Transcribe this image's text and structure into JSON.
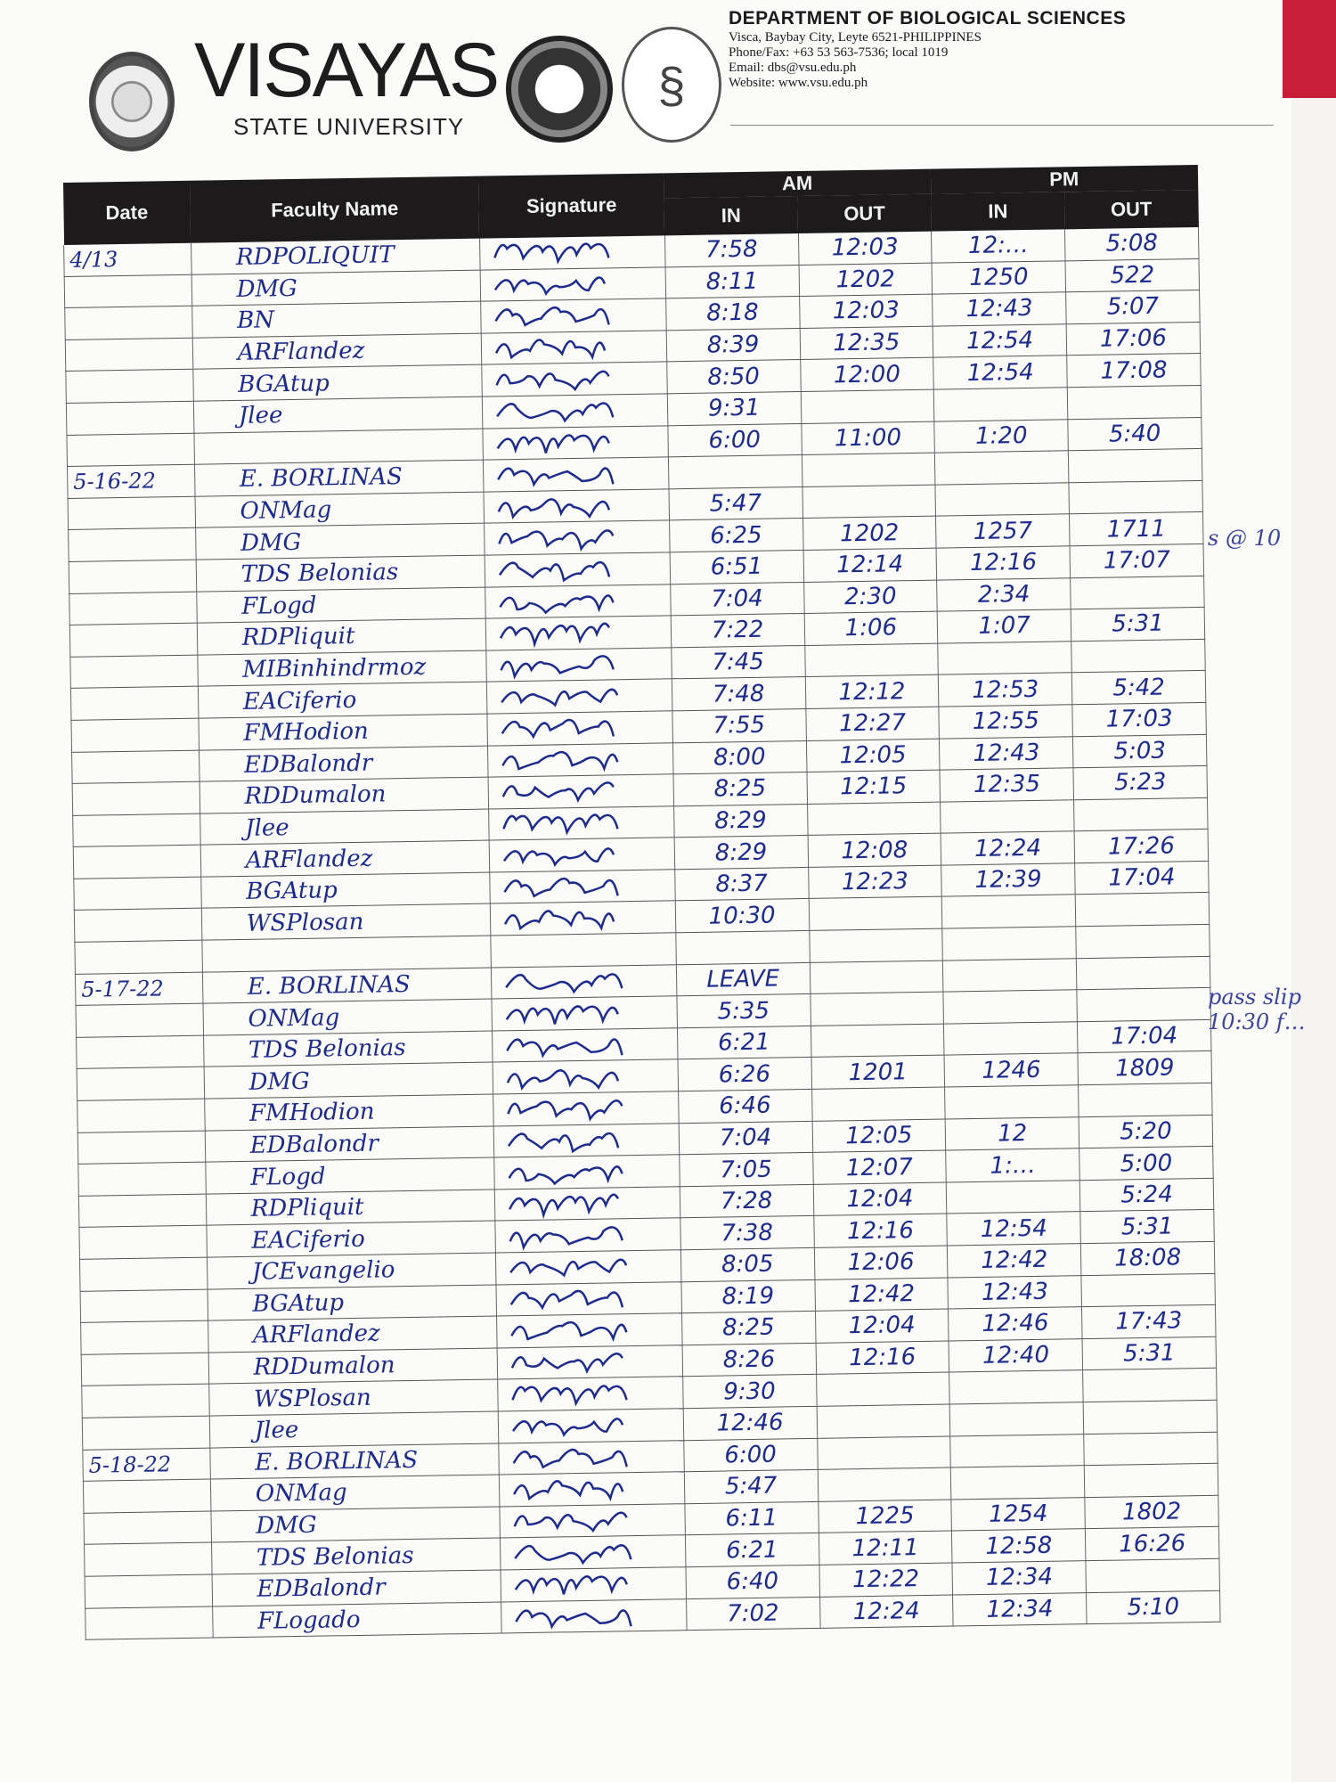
{
  "header": {
    "university": "VISAYAS",
    "university_sub": "STATE UNIVERSITY",
    "department": "DEPARTMENT OF BIOLOGICAL SCIENCES",
    "address": "Visca, Baybay City, Leyte 6521-PHILIPPINES",
    "phone": "Phone/Fax: +63 53  563-7536; local 1019",
    "email": "Email: dbs@vsu.edu.ph",
    "website": "Website: www.vsu.edu.ph"
  },
  "table": {
    "columns": {
      "date": "Date",
      "name": "Faculty Name",
      "signature": "Signature",
      "am": "AM",
      "pm": "PM",
      "in": "IN",
      "out": "OUT"
    },
    "rows": [
      {
        "date": "4/13",
        "name": "RDPOLIQUIT",
        "sig": true,
        "am_in": "7:58",
        "am_out": "12:03",
        "pm_in": "12:…",
        "pm_out": "5:08"
      },
      {
        "date": "",
        "name": "DMG",
        "sig": true,
        "am_in": "8:11",
        "am_out": "1202",
        "pm_in": "1250",
        "pm_out": "522"
      },
      {
        "date": "",
        "name": "BN",
        "sig": true,
        "am_in": "8:18",
        "am_out": "12:03",
        "pm_in": "12:43",
        "pm_out": "5:07"
      },
      {
        "date": "",
        "name": "ARFlandez",
        "sig": true,
        "am_in": "8:39",
        "am_out": "12:35",
        "pm_in": "12:54",
        "pm_out": "17:06"
      },
      {
        "date": "",
        "name": "BGAtup",
        "sig": true,
        "am_in": "8:50",
        "am_out": "12:00",
        "pm_in": "12:54",
        "pm_out": "17:08"
      },
      {
        "date": "",
        "name": "Jlee",
        "sig": true,
        "am_in": "9:31",
        "am_out": "",
        "pm_in": "",
        "pm_out": ""
      },
      {
        "date": "",
        "name": "",
        "sig": true,
        "am_in": "6:00",
        "am_out": "11:00",
        "pm_in": "1:20",
        "pm_out": "5:40"
      },
      {
        "date": "5-16-22",
        "name": "E. BORLINAS",
        "sig": true,
        "am_in": "",
        "am_out": "",
        "pm_in": "",
        "pm_out": ""
      },
      {
        "date": "",
        "name": "ONMag",
        "sig": true,
        "am_in": "5:47",
        "am_out": "",
        "pm_in": "",
        "pm_out": ""
      },
      {
        "date": "",
        "name": "DMG",
        "sig": true,
        "am_in": "6:25",
        "am_out": "1202",
        "pm_in": "1257",
        "pm_out": "1711"
      },
      {
        "date": "",
        "name": "TDS Belonias",
        "sig": true,
        "am_in": "6:51",
        "am_out": "12:14",
        "pm_in": "12:16",
        "pm_out": "17:07"
      },
      {
        "date": "",
        "name": "FLogd",
        "sig": true,
        "am_in": "7:04",
        "am_out": "2:30",
        "pm_in": "2:34",
        "pm_out": ""
      },
      {
        "date": "",
        "name": "RDPliquit",
        "sig": true,
        "am_in": "7:22",
        "am_out": "1:06",
        "pm_in": "1:07",
        "pm_out": "5:31"
      },
      {
        "date": "",
        "name": "MIBinhindrmoz",
        "sig": true,
        "am_in": "7:45",
        "am_out": "",
        "pm_in": "",
        "pm_out": ""
      },
      {
        "date": "",
        "name": "EACiferio",
        "sig": true,
        "am_in": "7:48",
        "am_out": "12:12",
        "pm_in": "12:53",
        "pm_out": "5:42"
      },
      {
        "date": "",
        "name": "FMHodion",
        "sig": true,
        "am_in": "7:55",
        "am_out": "12:27",
        "pm_in": "12:55",
        "pm_out": "17:03"
      },
      {
        "date": "",
        "name": "EDBalondr",
        "sig": true,
        "am_in": "8:00",
        "am_out": "12:05",
        "pm_in": "12:43",
        "pm_out": "5:03"
      },
      {
        "date": "",
        "name": "RDDumalon",
        "sig": true,
        "am_in": "8:25",
        "am_out": "12:15",
        "pm_in": "12:35",
        "pm_out": "5:23"
      },
      {
        "date": "",
        "name": "Jlee",
        "sig": true,
        "am_in": "8:29",
        "am_out": "",
        "pm_in": "",
        "pm_out": ""
      },
      {
        "date": "",
        "name": "ARFlandez",
        "sig": true,
        "am_in": "8:29",
        "am_out": "12:08",
        "pm_in": "12:24",
        "pm_out": "17:26"
      },
      {
        "date": "",
        "name": "BGAtup",
        "sig": true,
        "am_in": "8:37",
        "am_out": "12:23",
        "pm_in": "12:39",
        "pm_out": "17:04"
      },
      {
        "date": "",
        "name": "WSPlosan",
        "sig": true,
        "am_in": "10:30",
        "am_out": "",
        "pm_in": "",
        "pm_out": ""
      },
      {
        "date": "",
        "name": "",
        "sig": false,
        "am_in": "",
        "am_out": "",
        "pm_in": "",
        "pm_out": ""
      },
      {
        "date": "5-17-22",
        "name": "E. BORLINAS",
        "sig": true,
        "am_in": "LEAVE",
        "am_out": "",
        "pm_in": "",
        "pm_out": ""
      },
      {
        "date": "",
        "name": "ONMag",
        "sig": true,
        "am_in": "5:35",
        "am_out": "",
        "pm_in": "",
        "pm_out": ""
      },
      {
        "date": "",
        "name": "TDS Belonias",
        "sig": true,
        "am_in": "6:21",
        "am_out": "",
        "pm_in": "",
        "pm_out": "17:04"
      },
      {
        "date": "",
        "name": "DMG",
        "sig": true,
        "am_in": "6:26",
        "am_out": "1201",
        "pm_in": "1246",
        "pm_out": "1809"
      },
      {
        "date": "",
        "name": "FMHodion",
        "sig": true,
        "am_in": "6:46",
        "am_out": "",
        "pm_in": "",
        "pm_out": ""
      },
      {
        "date": "",
        "name": "EDBalondr",
        "sig": true,
        "am_in": "7:04",
        "am_out": "12:05",
        "pm_in": "12",
        "pm_out": "5:20"
      },
      {
        "date": "",
        "name": "FLogd",
        "sig": true,
        "am_in": "7:05",
        "am_out": "12:07",
        "pm_in": "1:…",
        "pm_out": "5:00"
      },
      {
        "date": "",
        "name": "RDPliquit",
        "sig": true,
        "am_in": "7:28",
        "am_out": "12:04",
        "pm_in": "",
        "pm_out": "5:24"
      },
      {
        "date": "",
        "name": "EACiferio",
        "sig": true,
        "am_in": "7:38",
        "am_out": "12:16",
        "pm_in": "12:54",
        "pm_out": "5:31"
      },
      {
        "date": "",
        "name": "JCEvangelio",
        "sig": true,
        "am_in": "8:05",
        "am_out": "12:06",
        "pm_in": "12:42",
        "pm_out": "18:08"
      },
      {
        "date": "",
        "name": "BGAtup",
        "sig": true,
        "am_in": "8:19",
        "am_out": "12:42",
        "pm_in": "12:43",
        "pm_out": ""
      },
      {
        "date": "",
        "name": "ARFlandez",
        "sig": true,
        "am_in": "8:25",
        "am_out": "12:04",
        "pm_in": "12:46",
        "pm_out": "17:43"
      },
      {
        "date": "",
        "name": "RDDumalon",
        "sig": true,
        "am_in": "8:26",
        "am_out": "12:16",
        "pm_in": "12:40",
        "pm_out": "5:31"
      },
      {
        "date": "",
        "name": "WSPlosan",
        "sig": true,
        "am_in": "9:30",
        "am_out": "",
        "pm_in": "",
        "pm_out": ""
      },
      {
        "date": "",
        "name": "Jlee",
        "sig": true,
        "am_in": "12:46",
        "am_out": "",
        "pm_in": "",
        "pm_out": ""
      },
      {
        "date": "5-18-22",
        "name": "E. BORLINAS",
        "sig": true,
        "am_in": "6:00",
        "am_out": "",
        "pm_in": "",
        "pm_out": ""
      },
      {
        "date": "",
        "name": "ONMag",
        "sig": true,
        "am_in": "5:47",
        "am_out": "",
        "pm_in": "",
        "pm_out": ""
      },
      {
        "date": "",
        "name": "DMG",
        "sig": true,
        "am_in": "6:11",
        "am_out": "1225",
        "pm_in": "1254",
        "pm_out": "1802"
      },
      {
        "date": "",
        "name": "TDS Belonias",
        "sig": true,
        "am_in": "6:21",
        "am_out": "12:11",
        "pm_in": "12:58",
        "pm_out": "16:26"
      },
      {
        "date": "",
        "name": "EDBalondr",
        "sig": true,
        "am_in": "6:40",
        "am_out": "12:22",
        "pm_in": "12:34",
        "pm_out": ""
      },
      {
        "date": "",
        "name": "FLogado",
        "sig": true,
        "am_in": "7:02",
        "am_out": "12:24",
        "pm_in": "12:34",
        "pm_out": "5:10"
      }
    ]
  },
  "margin_notes": [
    "s @ 10",
    "pass slip 10:30 f…"
  ],
  "colors": {
    "ink": "#1d2b8c",
    "header_band": "#1c1a1a",
    "edge": "#c81e3a"
  }
}
